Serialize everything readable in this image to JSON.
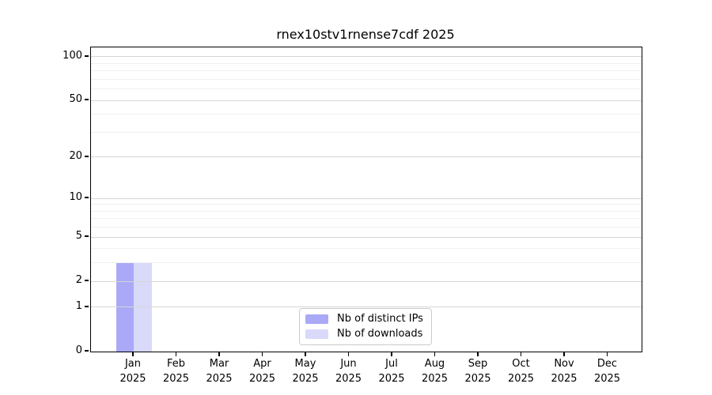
{
  "chart_data": {
    "type": "bar",
    "title": "rnex10stv1rnense7cdf 2025",
    "categories": [
      "Jan 2025",
      "Feb 2025",
      "Mar 2025",
      "Apr 2025",
      "May 2025",
      "Jun 2025",
      "Jul 2025",
      "Aug 2025",
      "Sep 2025",
      "Oct 2025",
      "Nov 2025",
      "Dec 2025"
    ],
    "series": [
      {
        "name": "Nb of distinct IPs",
        "color": "#a9a9f7",
        "values": [
          3,
          0,
          0,
          0,
          0,
          0,
          0,
          0,
          0,
          0,
          0,
          0
        ]
      },
      {
        "name": "Nb of downloads",
        "color": "#d9d9fa",
        "values": [
          3,
          0,
          0,
          0,
          0,
          0,
          0,
          0,
          0,
          0,
          0,
          0
        ]
      }
    ],
    "xlabel": "",
    "ylabel": "",
    "y_scale": "log1p",
    "ylim": [
      0,
      116
    ],
    "y_ticks_major": [
      0,
      1,
      2,
      5,
      10,
      20,
      50,
      100
    ],
    "y_ticks_minor": [
      3,
      4,
      6,
      7,
      8,
      9,
      30,
      40,
      60,
      70,
      80,
      90
    ],
    "grid": "both",
    "legend_position": "lower center",
    "colors": {
      "background": "#ffffff",
      "axis": "#000000",
      "grid_major": "#d6d6d6",
      "grid_minor": "#f1f1f1",
      "bar_distinct_ips": "#a9a9f7",
      "bar_downloads": "#d9d9fa"
    }
  }
}
